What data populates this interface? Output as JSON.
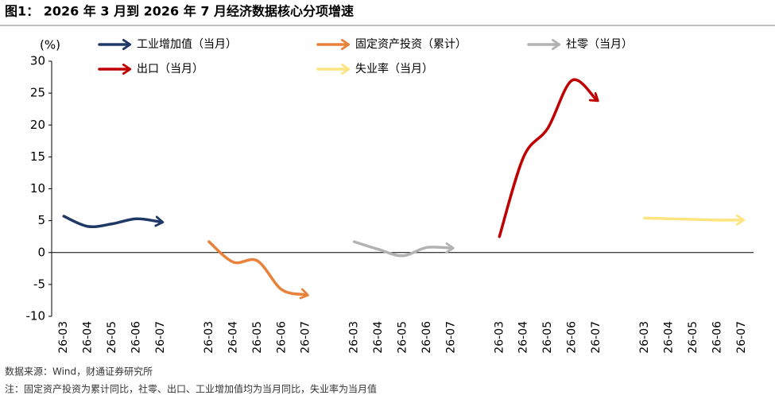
{
  "title": "图1： 2026 年 3 月到 2026 年 7 月经济数据核心分项增速",
  "chart_data": {
    "type": "line",
    "ylabel": "(%)",
    "categories": [
      "26-03",
      "26-04",
      "26-05",
      "26-06",
      "26-07",
      null,
      "26-03",
      "26-04",
      "26-05",
      "26-06",
      "26-07",
      null,
      "26-03",
      "26-04",
      "26-05",
      "26-06",
      "26-07",
      null,
      "26-03",
      "26-04",
      "26-05",
      "26-06",
      "26-07",
      null,
      "26-03",
      "26-04",
      "26-05",
      "26-06",
      "26-07"
    ],
    "series": [
      {
        "name": "工业增加值（当月）",
        "color": "#1f3866",
        "values": [
          5.7,
          4.1,
          4.5,
          5.3,
          4.8,
          null,
          null,
          null,
          null,
          null,
          null,
          null,
          null,
          null,
          null,
          null,
          null,
          null,
          null,
          null,
          null,
          null,
          null,
          null,
          null,
          null,
          null,
          null,
          null
        ]
      },
      {
        "name": "固定资产投资（累计）",
        "color": "#e8823a",
        "values": [
          null,
          null,
          null,
          null,
          null,
          null,
          1.7,
          -1.5,
          -1.3,
          -5.8,
          -6.6,
          null,
          null,
          null,
          null,
          null,
          null,
          null,
          null,
          null,
          null,
          null,
          null,
          null,
          null,
          null,
          null,
          null,
          null
        ]
      },
      {
        "name": "社零（当月）",
        "color": "#b2b2b2",
        "values": [
          null,
          null,
          null,
          null,
          null,
          null,
          null,
          null,
          null,
          null,
          null,
          null,
          1.7,
          0.5,
          -0.5,
          0.8,
          0.7,
          null,
          null,
          null,
          null,
          null,
          null,
          null,
          null,
          null,
          null,
          null,
          null
        ]
      },
      {
        "name": "出口（当月）",
        "color": "#c00000",
        "values": [
          null,
          null,
          null,
          null,
          null,
          null,
          null,
          null,
          null,
          null,
          null,
          null,
          null,
          null,
          null,
          null,
          null,
          null,
          2.5,
          15,
          19.5,
          27,
          24,
          null,
          null,
          null,
          null,
          null,
          null
        ]
      },
      {
        "name": "失业率（当月）",
        "color": "#fde480",
        "values": [
          null,
          null,
          null,
          null,
          null,
          null,
          null,
          null,
          null,
          null,
          null,
          null,
          null,
          null,
          null,
          null,
          null,
          null,
          null,
          null,
          null,
          null,
          null,
          null,
          5.4,
          5.3,
          5.2,
          5.1,
          5.1
        ]
      }
    ],
    "ylim": [
      -10,
      30
    ],
    "yticks": [
      -10,
      -5,
      0,
      5,
      10,
      15,
      20,
      25,
      30
    ]
  },
  "source": "数据来源：Wind，财通证券研究所",
  "note": "注：固定资产投资为累计同比，社零、出口、工业增加值均为当月同比，失业率为当月值"
}
